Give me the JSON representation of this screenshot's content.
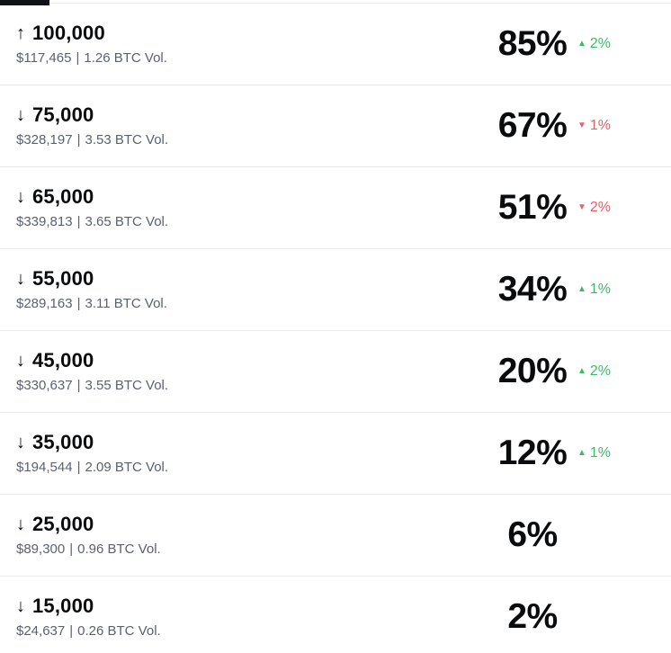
{
  "colors": {
    "positive": "#3cbb63",
    "negative": "#ea5d68",
    "text_primary": "#0a0b0d",
    "text_secondary": "#5b616e",
    "divider": "#ececec",
    "indicator": "#101215"
  },
  "icons": {
    "up_triangle": "▲",
    "down_triangle": "▼",
    "up_arrow": "↑",
    "down_arrow": "↓"
  },
  "separator": "|",
  "rows": [
    {
      "arrow": "↑",
      "direction": "up",
      "level": "100,000",
      "volume_usd": "$117,465",
      "volume_btc": "1.26 BTC Vol.",
      "percent": "85%",
      "change": "2%",
      "change_direction": "up"
    },
    {
      "arrow": "↓",
      "direction": "down",
      "level": "75,000",
      "volume_usd": "$328,197",
      "volume_btc": "3.53 BTC Vol.",
      "percent": "67%",
      "change": "1%",
      "change_direction": "down"
    },
    {
      "arrow": "↓",
      "direction": "down",
      "level": "65,000",
      "volume_usd": "$339,813",
      "volume_btc": "3.65 BTC Vol.",
      "percent": "51%",
      "change": "2%",
      "change_direction": "down"
    },
    {
      "arrow": "↓",
      "direction": "down",
      "level": "55,000",
      "volume_usd": "$289,163",
      "volume_btc": "3.11 BTC Vol.",
      "percent": "34%",
      "change": "1%",
      "change_direction": "up"
    },
    {
      "arrow": "↓",
      "direction": "down",
      "level": "45,000",
      "volume_usd": "$330,637",
      "volume_btc": "3.55 BTC Vol.",
      "percent": "20%",
      "change": "2%",
      "change_direction": "up"
    },
    {
      "arrow": "↓",
      "direction": "down",
      "level": "35,000",
      "volume_usd": "$194,544",
      "volume_btc": "2.09 BTC Vol.",
      "percent": "12%",
      "change": "1%",
      "change_direction": "up"
    },
    {
      "arrow": "↓",
      "direction": "down",
      "level": "25,000",
      "volume_usd": "$89,300",
      "volume_btc": "0.96 BTC Vol.",
      "percent": "6%",
      "change": null,
      "change_direction": null
    },
    {
      "arrow": "↓",
      "direction": "down",
      "level": "15,000",
      "volume_usd": "$24,637",
      "volume_btc": "0.26 BTC Vol.",
      "percent": "2%",
      "change": null,
      "change_direction": null
    }
  ]
}
